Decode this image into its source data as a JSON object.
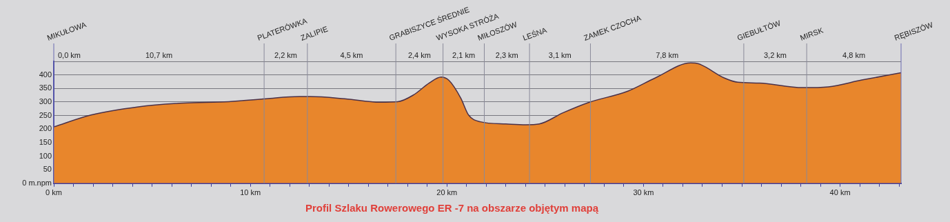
{
  "chart_data": {
    "type": "area",
    "title": "Profil Szlaku Rowerowego ER -7 na obszarze objętym mapą",
    "x": [
      0,
      1.9,
      4.3,
      6.6,
      8.9,
      10.8,
      12.5,
      13.05,
      14.8,
      16.6,
      17.5,
      18.3,
      19.1,
      19.7,
      20.1,
      20.7,
      21.1,
      21.7,
      23.0,
      24.0,
      24.7,
      25.9,
      27.2,
      29.2,
      30.6,
      32.4,
      32.8,
      34.1,
      34.8,
      35.9,
      38.1,
      39.4,
      41.1,
      43.1
    ],
    "series": [
      {
        "color": "#e8862c",
        "values": [
          208,
          252,
          282,
          296,
          301,
          312,
          320,
          320,
          312,
          299,
          301,
          326,
          370,
          392,
          380,
          315,
          252,
          227,
          219,
          216,
          219,
          260,
          298,
          340,
          389,
          444,
          441,
          389,
          373,
          370,
          353,
          356,
          381,
          408
        ]
      }
    ],
    "xlim": [
      0,
      43.1
    ],
    "xticks": [
      {
        "value": 0,
        "label": "0 km"
      },
      {
        "value": 1,
        "label": null
      },
      {
        "value": 2,
        "label": null
      },
      {
        "value": 3,
        "label": null
      },
      {
        "value": 4,
        "label": null
      },
      {
        "value": 5,
        "label": null
      },
      {
        "value": 6,
        "label": null
      },
      {
        "value": 7,
        "label": null
      },
      {
        "value": 8,
        "label": null
      },
      {
        "value": 9,
        "label": null
      },
      {
        "value": 10,
        "label": "10 km"
      },
      {
        "value": 11,
        "label": null
      },
      {
        "value": 12,
        "label": null
      },
      {
        "value": 13,
        "label": null
      },
      {
        "value": 14,
        "label": null
      },
      {
        "value": 15,
        "label": null
      },
      {
        "value": 16,
        "label": null
      },
      {
        "value": 17,
        "label": null
      },
      {
        "value": 18,
        "label": null
      },
      {
        "value": 19,
        "label": null
      },
      {
        "value": 20,
        "label": "20 km"
      },
      {
        "value": 21,
        "label": null
      },
      {
        "value": 22,
        "label": null
      },
      {
        "value": 23,
        "label": null
      },
      {
        "value": 24,
        "label": null
      },
      {
        "value": 25,
        "label": null
      },
      {
        "value": 26,
        "label": null
      },
      {
        "value": 27,
        "label": null
      },
      {
        "value": 28,
        "label": null
      },
      {
        "value": 29,
        "label": null
      },
      {
        "value": 30,
        "label": "30 km"
      },
      {
        "value": 31,
        "label": null
      },
      {
        "value": 32,
        "label": null
      },
      {
        "value": 33,
        "label": null
      },
      {
        "value": 34,
        "label": null
      },
      {
        "value": 35,
        "label": null
      },
      {
        "value": 36,
        "label": null
      },
      {
        "value": 37,
        "label": null
      },
      {
        "value": 38,
        "label": null
      },
      {
        "value": 39,
        "label": null
      },
      {
        "value": 40,
        "label": "40 km"
      },
      {
        "value": 41,
        "label": null
      },
      {
        "value": 42,
        "label": null
      },
      {
        "value": 43,
        "label": null
      }
    ],
    "ylim": [
      0,
      450
    ],
    "yticks": [
      {
        "value": 0,
        "label": "0 m.npm"
      },
      50,
      100,
      150,
      200,
      250,
      300,
      350,
      400,
      {
        "value": 450,
        "label": null
      }
    ],
    "grid": "y",
    "legend": false,
    "ref_lines": [
      {
        "axis": "x",
        "value": 0,
        "label": "MIKUŁOWA",
        "color": "#6a6ab0"
      },
      {
        "axis": "x",
        "value": 10.7,
        "label": "PLATERÓWKA",
        "color": "#8a8a9a"
      },
      {
        "axis": "x",
        "value": 12.9,
        "label": "ZALIPIE",
        "color": "#8a8a9a"
      },
      {
        "axis": "x",
        "value": 17.4,
        "label": "GRABISZYCE ŚREDNIE",
        "color": "#8a8a9a"
      },
      {
        "axis": "x",
        "value": 19.8,
        "label": "WYSOKA STRÓŻA",
        "color": "#8a8a9a"
      },
      {
        "axis": "x",
        "value": 21.9,
        "label": "MIŁOSZÓW",
        "color": "#8a8a9a"
      },
      {
        "axis": "x",
        "value": 24.2,
        "label": "LEŚNA",
        "color": "#8a8a9a"
      },
      {
        "axis": "x",
        "value": 27.3,
        "label": "ZAMEK CZOCHA",
        "color": "#8a8a9a"
      },
      {
        "axis": "x",
        "value": 35.1,
        "label": "GIEBUŁTÓW",
        "color": "#8a8a9a"
      },
      {
        "axis": "x",
        "value": 38.3,
        "label": "MIRSK",
        "color": "#8a8a9a"
      },
      {
        "axis": "x",
        "value": 43.1,
        "label": "RĘBISZÓW",
        "color": "#6a6ab0"
      }
    ],
    "annotations": [
      "0,0 km",
      "10,7 km",
      "2,2 km",
      "4,5 km",
      "2,4 km",
      "2,1 km",
      "2,3 km",
      "3,1 km",
      "7,8 km",
      "3,2 km",
      "4,8 km"
    ]
  }
}
